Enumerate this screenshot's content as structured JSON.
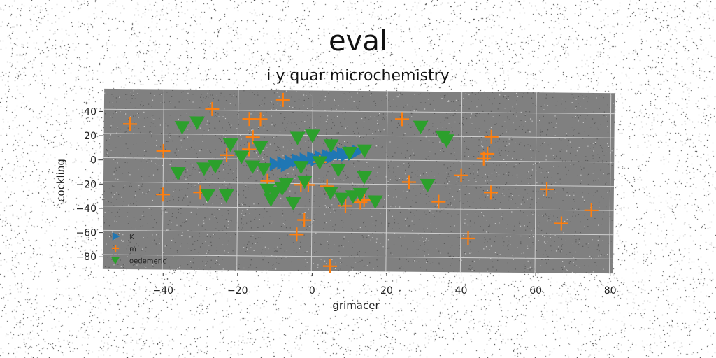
{
  "title": "eval",
  "subtitle": "i y quar microchemistry",
  "chart_data": {
    "type": "scatter",
    "xlabel": "grimacer",
    "ylabel": "cockling",
    "xlim": [
      -56,
      81
    ],
    "ylim": [
      -92,
      57
    ],
    "xticks": [
      -40,
      -20,
      0,
      20,
      40,
      60,
      80
    ],
    "yticks": [
      40,
      20,
      0,
      -20,
      -40,
      -60,
      -80
    ],
    "xtick_labels": [
      "−40",
      "−20",
      "0",
      "20",
      "40",
      "60",
      "80"
    ],
    "ytick_labels": [
      "40",
      "20",
      "0",
      "−20",
      "−40",
      "−60",
      "−80"
    ],
    "grid": true,
    "background": "#808080",
    "legend_position": "lower-left",
    "series": [
      {
        "name": "K",
        "marker": "triangle-right",
        "color": "#1f77b4",
        "points": [
          [
            -10,
            -4
          ],
          [
            -8,
            -3
          ],
          [
            -6,
            -2
          ],
          [
            -4,
            -1
          ],
          [
            -2,
            0
          ],
          [
            0,
            1
          ],
          [
            2,
            2
          ],
          [
            4,
            3
          ],
          [
            6,
            4
          ],
          [
            8,
            5
          ],
          [
            10,
            6
          ],
          [
            12,
            7
          ],
          [
            -7,
            -5
          ],
          [
            -3,
            -2
          ],
          [
            1,
            0
          ],
          [
            5,
            2
          ],
          [
            9,
            4
          ],
          [
            11,
            5
          ]
        ]
      },
      {
        "name": "m",
        "marker": "plus",
        "color": "#ff7f0e",
        "points": [
          [
            -8,
            49
          ],
          [
            -27,
            41
          ],
          [
            -49,
            28
          ],
          [
            -17,
            33
          ],
          [
            -14,
            33
          ],
          [
            -16,
            18
          ],
          [
            -17,
            8
          ],
          [
            -23,
            3
          ],
          [
            -40,
            6
          ],
          [
            -40,
            -30
          ],
          [
            -30,
            -28
          ],
          [
            -12,
            -18
          ],
          [
            -3,
            -21
          ],
          [
            -1,
            -21
          ],
          [
            2,
            -2
          ],
          [
            4,
            -22
          ],
          [
            5,
            -88
          ],
          [
            9,
            -38
          ],
          [
            13,
            -35
          ],
          [
            14,
            -33
          ],
          [
            -4,
            -62
          ],
          [
            -2,
            -50
          ],
          [
            24,
            34
          ],
          [
            26,
            -18
          ],
          [
            34,
            -34
          ],
          [
            40,
            -12
          ],
          [
            42,
            -64
          ],
          [
            46,
            2
          ],
          [
            47,
            6
          ],
          [
            48,
            20
          ],
          [
            48,
            -26
          ],
          [
            63,
            -23
          ],
          [
            67,
            -51
          ],
          [
            75,
            -40
          ]
        ]
      },
      {
        "name": "oedemeric",
        "marker": "triangle-down",
        "color": "#2ca02c",
        "points": [
          [
            -35,
            26
          ],
          [
            -31,
            30
          ],
          [
            -36,
            -12
          ],
          [
            -29,
            -8
          ],
          [
            -26,
            -6
          ],
          [
            -28,
            -30
          ],
          [
            -23,
            -30
          ],
          [
            -22,
            12
          ],
          [
            -19,
            2
          ],
          [
            -16,
            -6
          ],
          [
            -14,
            10
          ],
          [
            -13,
            -8
          ],
          [
            -12,
            -25
          ],
          [
            -10,
            -28
          ],
          [
            -11,
            -33
          ],
          [
            -8,
            -24
          ],
          [
            -7,
            -20
          ],
          [
            -5,
            -36
          ],
          [
            -3,
            -6
          ],
          [
            -4,
            18
          ],
          [
            -2,
            -18
          ],
          [
            0,
            20
          ],
          [
            2,
            -2
          ],
          [
            5,
            12
          ],
          [
            7,
            -8
          ],
          [
            5,
            -27
          ],
          [
            8,
            -32
          ],
          [
            10,
            6
          ],
          [
            11,
            -30
          ],
          [
            13,
            -28
          ],
          [
            14,
            8
          ],
          [
            14,
            -14
          ],
          [
            17,
            -34
          ],
          [
            29,
            28
          ],
          [
            31,
            -20
          ],
          [
            35,
            20
          ],
          [
            36,
            17
          ]
        ]
      }
    ]
  }
}
